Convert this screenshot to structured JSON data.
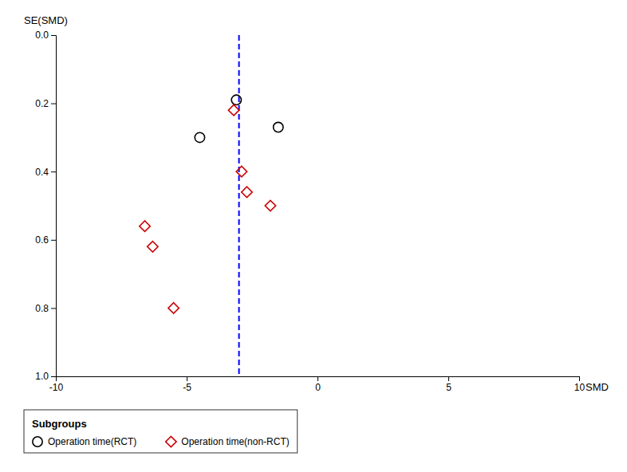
{
  "chart_data": {
    "type": "scatter",
    "x_label": "SMD",
    "y_label": "SE(SMD)",
    "series": [
      {
        "name": "Operation time(RCT)",
        "color": "#000000",
        "marker": "circle",
        "x": [
          -4.5,
          -3.1,
          -1.5
        ],
        "values": [
          0.3,
          0.19,
          0.27
        ]
      },
      {
        "name": "Operation time(non-RCT)",
        "color": "#CC0000",
        "marker": "diamond",
        "x": [
          -6.6,
          -6.3,
          -5.5,
          -3.2,
          -2.9,
          -2.7,
          -1.8
        ],
        "values": [
          0.56,
          0.62,
          0.8,
          0.22,
          0.4,
          0.46,
          0.5
        ]
      }
    ],
    "reference_lines": [
      {
        "x": -3.0,
        "color": "#0000FF",
        "line_style": "dashed"
      }
    ],
    "xlim": [
      -10,
      10
    ],
    "ylim": [
      1.0,
      0.0
    ],
    "xticks": [
      -10,
      -5,
      0,
      5,
      10
    ],
    "yticks": [
      {
        "value": 0,
        "label": "0.0"
      },
      0.2,
      0.4,
      0.6,
      0.8,
      {
        "value": 1.0,
        "label": "1.0"
      }
    ],
    "legend_title": "Subgroups",
    "legend": "bottom",
    "grid": false
  }
}
